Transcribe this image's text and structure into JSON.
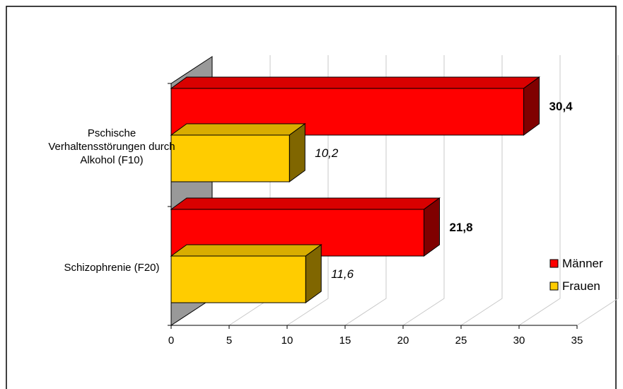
{
  "chart_data": {
    "type": "bar",
    "orientation": "horizontal",
    "three_d": true,
    "categories": [
      "Pschische Verhaltensstörungen durch Alkohol (F10)",
      "Schizophrenie (F20)"
    ],
    "category_lines": [
      [
        "Pschische",
        "Verhaltensstörungen durch",
        "Alkohol (F10)"
      ],
      [
        "Schizophrenie (F20)"
      ]
    ],
    "series": [
      {
        "name": "Männer",
        "values": [
          30.4,
          21.8
        ],
        "labels": [
          "30,4",
          "21,8"
        ],
        "color": "#ff0000",
        "label_style": "bold"
      },
      {
        "name": "Frauen",
        "values": [
          10.2,
          11.6
        ],
        "labels": [
          "10,2",
          "11,6"
        ],
        "color": "#ffcc00",
        "label_style": "italic"
      }
    ],
    "xlim": [
      0,
      35
    ],
    "xticks": [
      0,
      5,
      10,
      15,
      20,
      25,
      30,
      35
    ],
    "grid": true,
    "legend_position": "right",
    "title": "",
    "xlabel": "",
    "ylabel": ""
  }
}
